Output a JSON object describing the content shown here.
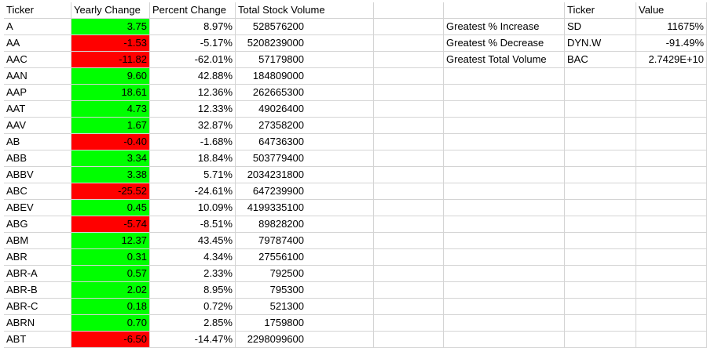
{
  "headers": {
    "ticker": "Ticker",
    "yearly_change": "Yearly Change",
    "percent_change": "Percent Change",
    "total_volume": "Total Stock Volume",
    "summary_ticker": "Ticker",
    "summary_value": "Value"
  },
  "rows": [
    {
      "ticker": "A",
      "yearly_change": "3.75",
      "percent_change": "8.97%",
      "volume": "528576200",
      "sign": "positive"
    },
    {
      "ticker": "AA",
      "yearly_change": "-1.53",
      "percent_change": "-5.17%",
      "volume": "5208239000",
      "sign": "negative"
    },
    {
      "ticker": "AAC",
      "yearly_change": "-11.82",
      "percent_change": "-62.01%",
      "volume": "57179800",
      "sign": "negative"
    },
    {
      "ticker": "AAN",
      "yearly_change": "9.60",
      "percent_change": "42.88%",
      "volume": "184809000",
      "sign": "positive"
    },
    {
      "ticker": "AAP",
      "yearly_change": "18.61",
      "percent_change": "12.36%",
      "volume": "262665300",
      "sign": "positive"
    },
    {
      "ticker": "AAT",
      "yearly_change": "4.73",
      "percent_change": "12.33%",
      "volume": "49026400",
      "sign": "positive"
    },
    {
      "ticker": "AAV",
      "yearly_change": "1.67",
      "percent_change": "32.87%",
      "volume": "27358200",
      "sign": "positive"
    },
    {
      "ticker": "AB",
      "yearly_change": "-0.40",
      "percent_change": "-1.68%",
      "volume": "64736300",
      "sign": "negative"
    },
    {
      "ticker": "ABB",
      "yearly_change": "3.34",
      "percent_change": "18.84%",
      "volume": "503779400",
      "sign": "positive"
    },
    {
      "ticker": "ABBV",
      "yearly_change": "3.38",
      "percent_change": "5.71%",
      "volume": "2034231800",
      "sign": "positive"
    },
    {
      "ticker": "ABC",
      "yearly_change": "-25.52",
      "percent_change": "-24.61%",
      "volume": "647239900",
      "sign": "negative"
    },
    {
      "ticker": "ABEV",
      "yearly_change": "0.45",
      "percent_change": "10.09%",
      "volume": "4199335100",
      "sign": "positive"
    },
    {
      "ticker": "ABG",
      "yearly_change": "-5.74",
      "percent_change": "-8.51%",
      "volume": "89828200",
      "sign": "negative"
    },
    {
      "ticker": "ABM",
      "yearly_change": "12.37",
      "percent_change": "43.45%",
      "volume": "79787400",
      "sign": "positive"
    },
    {
      "ticker": "ABR",
      "yearly_change": "0.31",
      "percent_change": "4.34%",
      "volume": "27556100",
      "sign": "positive"
    },
    {
      "ticker": "ABR-A",
      "yearly_change": "0.57",
      "percent_change": "2.33%",
      "volume": "792500",
      "sign": "positive"
    },
    {
      "ticker": "ABR-B",
      "yearly_change": "2.02",
      "percent_change": "8.95%",
      "volume": "795300",
      "sign": "positive"
    },
    {
      "ticker": "ABR-C",
      "yearly_change": "0.18",
      "percent_change": "0.72%",
      "volume": "521300",
      "sign": "positive"
    },
    {
      "ticker": "ABRN",
      "yearly_change": "0.70",
      "percent_change": "2.85%",
      "volume": "1759800",
      "sign": "positive"
    },
    {
      "ticker": "ABT",
      "yearly_change": "-6.50",
      "percent_change": "-14.47%",
      "volume": "2298099600",
      "sign": "negative"
    }
  ],
  "summary": [
    {
      "label": "Greatest % Increase",
      "ticker": "SD",
      "value": "11675%"
    },
    {
      "label": "Greatest % Decrease",
      "ticker": "DYN.W",
      "value": "-91.49%"
    },
    {
      "label": "Greatest Total Volume",
      "ticker": "BAC",
      "value": "2.7429E+10"
    }
  ],
  "colors": {
    "positive": "#00ff00",
    "negative": "#ff0000",
    "gridline": "#d4d4d4"
  }
}
